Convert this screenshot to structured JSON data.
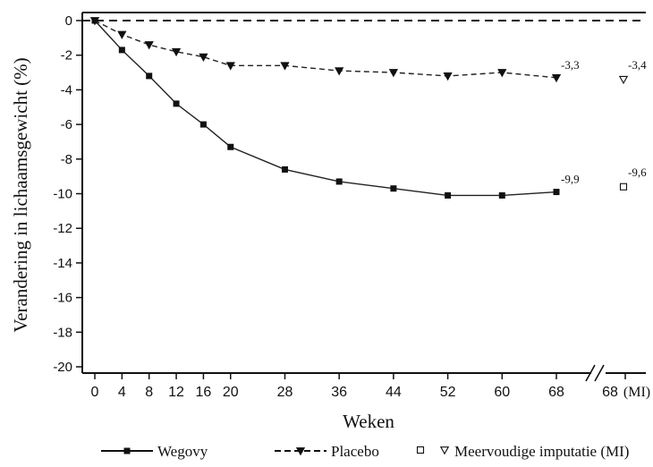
{
  "chart_data": {
    "type": "line",
    "xlabel": "Weken",
    "ylabel": "Verandering in lichaamsgewicht (%)",
    "ylim": [
      -20,
      0
    ],
    "x": [
      0,
      4,
      8,
      12,
      16,
      20,
      28,
      36,
      44,
      52,
      60,
      68
    ],
    "x_tick_labels": [
      "0",
      "4",
      "8",
      "12",
      "16",
      "20",
      "28",
      "36",
      "44",
      "52",
      "60",
      "68"
    ],
    "y_ticks": [
      0,
      -2,
      -4,
      -6,
      -8,
      -10,
      -12,
      -14,
      -16,
      -18,
      -20
    ],
    "y_tick_labels": [
      "0",
      "-2",
      "-4",
      "-6",
      "-8",
      "-10",
      "-12",
      "-14",
      "-16",
      "-18",
      "-20"
    ],
    "extra_x_tick": {
      "value": "68",
      "suffix": "(MI)"
    },
    "axis_break": true,
    "grid": false,
    "legend_position": "bottom",
    "series": [
      {
        "name": "Wegovy",
        "color": "#222222",
        "line_style": "solid",
        "marker": "square",
        "values": [
          0,
          -1.7,
          -3.2,
          -4.8,
          -6.0,
          -7.3,
          -8.6,
          -9.3,
          -9.7,
          -10.1,
          -10.1,
          -9.9
        ],
        "end_label": "-9,9"
      },
      {
        "name": "Placebo",
        "color": "#222222",
        "line_style": "dashed",
        "marker": "triangle-down",
        "values": [
          0,
          -0.8,
          -1.4,
          -1.8,
          -2.1,
          -2.6,
          -2.6,
          -2.9,
          -3.0,
          -3.2,
          -3.0,
          -3.3
        ],
        "end_label": "-3,3"
      }
    ],
    "mi_points": [
      {
        "series": "Wegovy",
        "marker": "open-square",
        "value": -9.6,
        "label": "-9,6"
      },
      {
        "series": "Placebo",
        "marker": "open-triangle-down",
        "value": -3.4,
        "label": "-3,4"
      }
    ],
    "reference_line": {
      "y": 0,
      "style": "dashed"
    },
    "legend": [
      {
        "label": "Wegovy"
      },
      {
        "label": "Placebo"
      },
      {
        "label": "Meervoudige imputatie (MI)"
      }
    ]
  }
}
